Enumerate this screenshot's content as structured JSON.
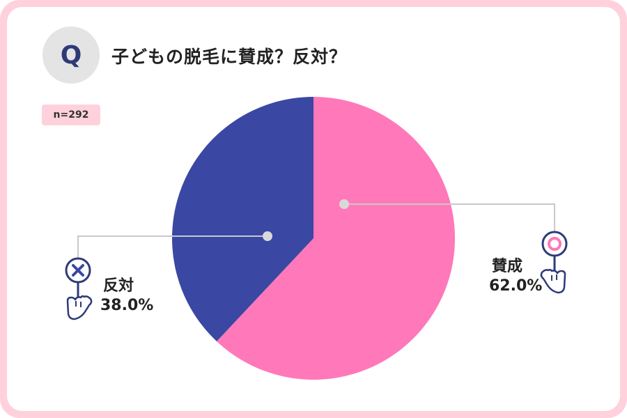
{
  "header": {
    "q_mark": "Q",
    "title": "子どもの脱毛に賛成？反対？",
    "sample_size": "n=292"
  },
  "chart_data": {
    "type": "pie",
    "title": "子どもの脱毛に賛成？反対？",
    "slices": [
      {
        "label": "賛成",
        "value": 62.0,
        "value_label": "62.0%",
        "color": "#ff78b9",
        "icon": "circle-sign-hand-icon"
      },
      {
        "label": "反対",
        "value": 38.0,
        "value_label": "38.0%",
        "color": "#3a47a3",
        "icon": "cross-sign-hand-icon"
      }
    ],
    "start": "12 o'clock",
    "direction": "clockwise"
  },
  "colors": {
    "frame": "#ffd1dc",
    "badge": "#ffd1dc",
    "q_circle": "#e4e4e4",
    "q_text": "#2e3a78",
    "leader_line": "#c8c8c8"
  }
}
